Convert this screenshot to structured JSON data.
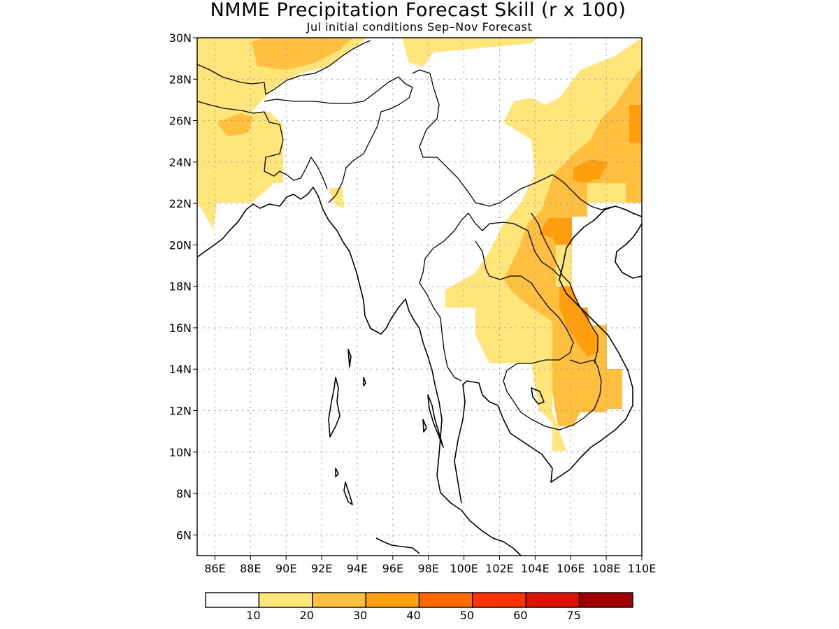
{
  "title": "NMME Precipitation Forecast Skill (r x 100)",
  "subtitle": "Jul initial conditions  Sep–Nov Forecast",
  "colors": {
    "c0": "#ffffff",
    "c10": "#ffe57a",
    "c20": "#ffbf3f",
    "c30": "#ff9f0f",
    "c40": "#ff6a00",
    "c50": "#ff3300",
    "c60": "#dd1100",
    "c75": "#a00000"
  },
  "map": {
    "lon_range": [
      85,
      110
    ],
    "lat_range": [
      5,
      30
    ],
    "x_ticks": [
      "86E",
      "88E",
      "90E",
      "92E",
      "94E",
      "96E",
      "98E",
      "100E",
      "102E",
      "104E",
      "106E",
      "108E",
      "110E"
    ],
    "y_ticks": [
      "6N",
      "8N",
      "10N",
      "12N",
      "14N",
      "16N",
      "18N",
      "20N",
      "22N",
      "24N",
      "26N",
      "28N",
      "30N"
    ],
    "grid": true
  },
  "colorbar": {
    "labels": [
      "10",
      "20",
      "30",
      "40",
      "50",
      "60",
      "75"
    ],
    "colors": [
      "#ffffff",
      "#ffe57a",
      "#ffbf3f",
      "#ff9f0f",
      "#ff6a00",
      "#ff3300",
      "#dd1100",
      "#a00000"
    ]
  }
}
